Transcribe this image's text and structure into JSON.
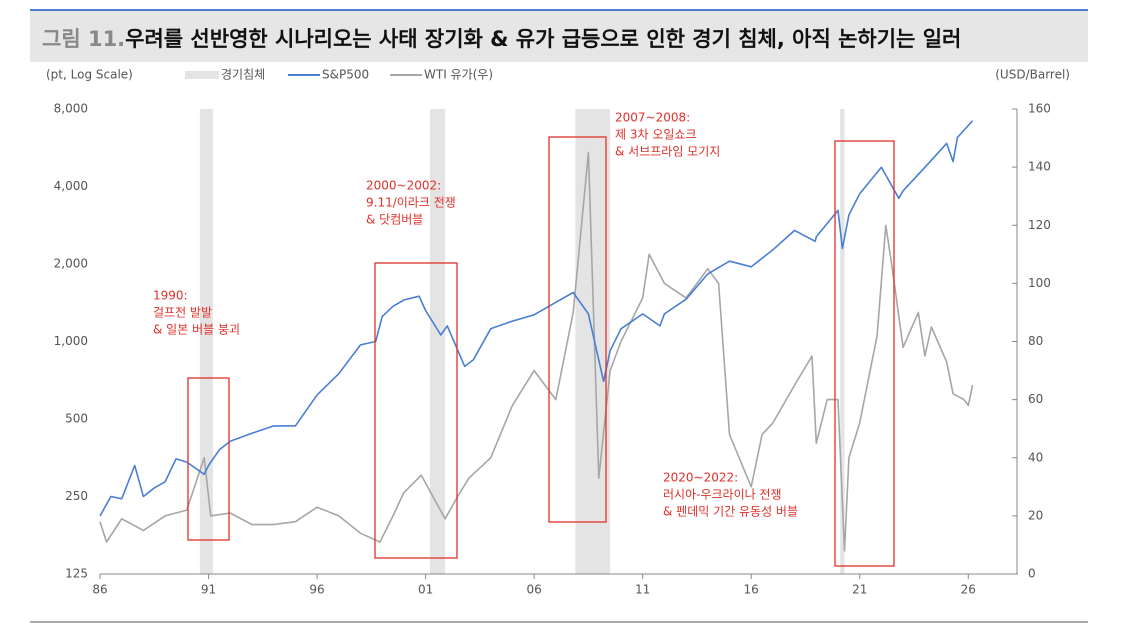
{
  "chart_data": {
    "type": "line",
    "figure_label": "그림 11.",
    "title": "우려를 선반영한 시나리오는 사태 장기화 & 유가 급등으로 인한 경기 침체, 아직 논하기는 일러",
    "y_label": "(pt, Log Scale)",
    "y2_label": "(USD/Barrel)",
    "log_y": true,
    "xlim": [
      1986,
      2027.6
    ],
    "xticks": [
      {
        "value": 1986,
        "label": "86"
      },
      {
        "value": 1991,
        "label": "91"
      },
      {
        "value": 1996,
        "label": "96"
      },
      {
        "value": 2001,
        "label": "01"
      },
      {
        "value": 2006,
        "label": "06"
      },
      {
        "value": 2011,
        "label": "11"
      },
      {
        "value": 2016,
        "label": "16"
      },
      {
        "value": 2021,
        "label": "21"
      },
      {
        "value": 2026,
        "label": "26"
      }
    ],
    "ylim": [
      125,
      8000
    ],
    "yticks": [
      125,
      250,
      500,
      {
        "value": 1000,
        "label": "1,000"
      },
      {
        "value": 2000,
        "label": "2,000"
      },
      {
        "value": 4000,
        "label": "4,000"
      },
      {
        "value": 8000,
        "label": "8,000"
      }
    ],
    "y2lim": [
      0,
      160
    ],
    "y2ticks": [
      0,
      20,
      40,
      60,
      80,
      100,
      120,
      140,
      160
    ],
    "shading": {
      "name": "경기침체",
      "color": "#e4e4e4",
      "ranges": [
        [
          1990.6,
          1991.2
        ],
        [
          2001.2,
          2001.9
        ],
        [
          2007.9,
          2009.5
        ],
        [
          2020.1,
          2020.3
        ]
      ]
    },
    "series": [
      {
        "name": "S&P500",
        "color": "#4a7fd4",
        "x": [
          1986,
          1986.5,
          1987,
          1987.6,
          1988,
          1988.5,
          1989,
          1989.5,
          1990,
          1990.8,
          1991,
          1991.5,
          1992,
          1993,
          1994,
          1995,
          1996,
          1997,
          1998,
          1998.7,
          1999,
          1999.5,
          2000,
          2000.7,
          2001,
          2001.7,
          2002,
          2002.8,
          2003.2,
          2004,
          2005,
          2006,
          2007,
          2007.8,
          2008.5,
          2009.2,
          2009.5,
          2010,
          2011,
          2011.8,
          2012,
          2013,
          2014,
          2015,
          2016,
          2017,
          2018,
          2018.95,
          2019,
          2020,
          2020.2,
          2020.5,
          2021,
          2022,
          2022.8,
          2023,
          2024,
          2025,
          2025.3,
          2025.5,
          2026.2
        ],
        "values": [
          210,
          250,
          245,
          330,
          250,
          270,
          285,
          350,
          340,
          305,
          330,
          380,
          410,
          440,
          470,
          470,
          620,
          750,
          970,
          1000,
          1250,
          1370,
          1450,
          1500,
          1320,
          1060,
          1150,
          800,
          850,
          1120,
          1200,
          1270,
          1420,
          1550,
          1280,
          700,
          920,
          1120,
          1280,
          1150,
          1280,
          1460,
          1830,
          2050,
          1950,
          2270,
          2700,
          2450,
          2550,
          3230,
          2300,
          3100,
          3750,
          4750,
          3600,
          3850,
          4750,
          5880,
          5000,
          6200,
          7200
        ]
      },
      {
        "name": "WTI 유가(우)",
        "color": "#a6a6a6",
        "axis": "y2",
        "x": [
          1986,
          1986.3,
          1987,
          1988,
          1989,
          1990,
          1990.8,
          1991.1,
          1992,
          1993,
          1994,
          1995,
          1996,
          1997,
          1998,
          1998.9,
          1999.5,
          2000,
          2000.8,
          2001.9,
          2002.5,
          2003,
          2004,
          2005,
          2006,
          2007,
          2007.8,
          2008.5,
          2008.98,
          2009.5,
          2010,
          2011,
          2011.3,
          2012,
          2013,
          2014,
          2014.5,
          2015,
          2016,
          2016.5,
          2017,
          2018,
          2018.8,
          2019,
          2019.5,
          2020,
          2020.3,
          2020.5,
          2021,
          2021.8,
          2022.2,
          2022.5,
          2023,
          2023.7,
          2024,
          2024.3,
          2025,
          2025.3,
          2025.8,
          2026,
          2026.2
        ],
        "values": [
          18,
          11,
          19,
          15,
          20,
          22,
          40,
          20,
          21,
          17,
          17,
          18,
          23,
          20,
          14,
          11,
          20,
          28,
          34,
          19,
          27,
          33,
          40,
          58,
          70,
          60,
          90,
          145,
          33,
          70,
          80,
          95,
          110,
          100,
          95,
          105,
          100,
          48,
          30,
          48,
          52,
          65,
          75,
          45,
          60,
          60,
          8,
          40,
          52,
          82,
          120,
          105,
          78,
          90,
          75,
          85,
          73,
          62,
          60,
          58,
          65
        ]
      }
    ],
    "annotations": [
      {
        "lines": [
          "1990:",
          "걸프전 발발",
          "& 일본 버블 붕괴"
        ]
      },
      {
        "lines": [
          "2000~2002:",
          "9.11/이라크 전쟁",
          "& 닷컴버블"
        ]
      },
      {
        "lines": [
          "2007~2008:",
          "제 3차 오일쇼크",
          "& 서브프라임 모기지"
        ]
      },
      {
        "lines": [
          "2020~2022:",
          "러시아-우크라이나 전쟁",
          "& 펜데믹 기간 유동성 버블"
        ]
      }
    ]
  }
}
